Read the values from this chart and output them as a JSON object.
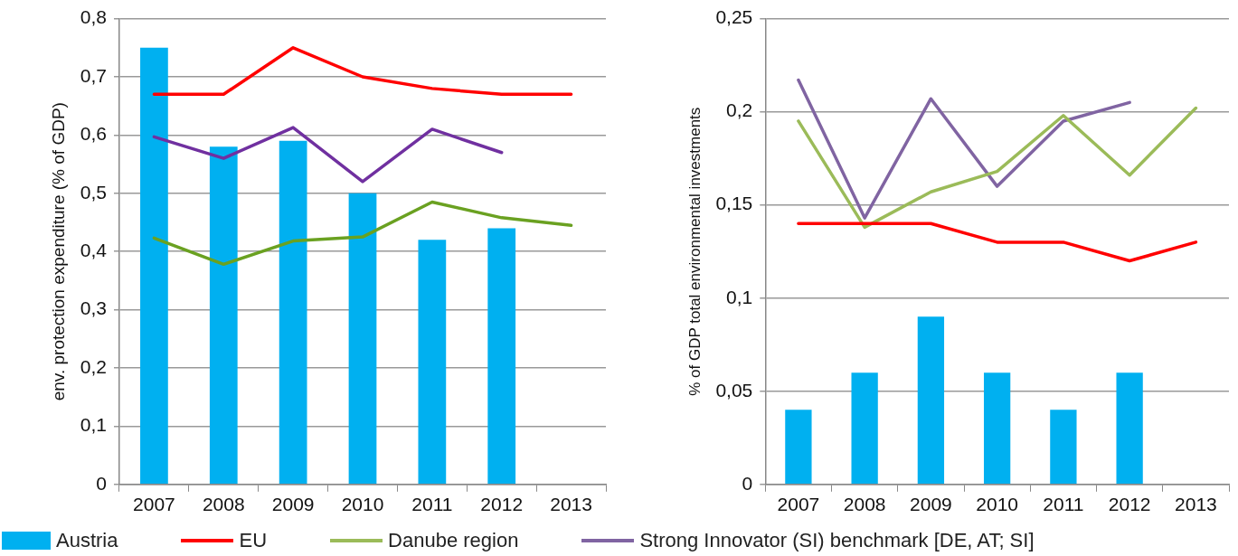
{
  "chart_data": [
    {
      "type": "bar",
      "ylabel": "env. protection expenditure (% of GDP)",
      "categories": [
        "2007",
        "2008",
        "2009",
        "2010",
        "2011",
        "2012",
        "2013"
      ],
      "series": [
        {
          "type": "bar",
          "color": "#00b0f0",
          "values": [
            0.75,
            0.58,
            0.59,
            0.5,
            0.42,
            0.44,
            null
          ]
        },
        {
          "type": "line",
          "color": "#ff0000",
          "values": [
            0.67,
            0.67,
            0.75,
            0.7,
            0.68,
            0.67,
            0.67
          ]
        },
        {
          "type": "line",
          "color": "#6aa121",
          "values": [
            0.423,
            0.378,
            0.418,
            0.425,
            0.485,
            0.458,
            0.445
          ]
        },
        {
          "type": "line",
          "color": "#7030a0",
          "values": [
            0.597,
            0.56,
            0.613,
            0.52,
            0.61,
            0.57,
            null
          ]
        }
      ],
      "ylim": [
        0,
        0.8
      ],
      "yticks": [
        0,
        {
          "value": 0.1,
          "label": "0,1"
        },
        {
          "value": 0.2,
          "label": "0,2"
        },
        {
          "value": 0.3,
          "label": "0,3"
        },
        {
          "value": 0.4,
          "label": "0,4"
        },
        {
          "value": 0.5,
          "label": "0,5"
        },
        {
          "value": 0.6,
          "label": "0,6"
        },
        {
          "value": 0.7,
          "label": "0,7"
        },
        {
          "value": 0.8,
          "label": "0,8"
        }
      ],
      "grid": "y",
      "marker": "none"
    },
    {
      "type": "bar",
      "ylabel": "% of GDP total environmental investments",
      "categories": [
        "2007",
        "2008",
        "2009",
        "2010",
        "2011",
        "2012",
        "2013"
      ],
      "series": [
        {
          "name": "Austria",
          "type": "bar",
          "color": "#00b0f0",
          "values": [
            0.04,
            0.06,
            0.09,
            0.06,
            0.04,
            0.06,
            null
          ]
        },
        {
          "name": "EU",
          "type": "line",
          "color": "#ff0000",
          "values": [
            0.14,
            0.14,
            0.14,
            0.13,
            0.13,
            0.12,
            0.13
          ]
        },
        {
          "name": "Danube region",
          "type": "line",
          "color": "#9bbb59",
          "values": [
            0.195,
            0.138,
            0.157,
            0.168,
            0.198,
            0.166,
            0.202
          ]
        },
        {
          "name": "Strong Innovator (SI) benchmark [DE, AT; SI]",
          "type": "line",
          "color": "#8064a2",
          "values": [
            0.217,
            0.143,
            0.207,
            0.16,
            0.195,
            0.205,
            null
          ]
        }
      ],
      "ylim": [
        0,
        0.25
      ],
      "yticks": [
        0,
        {
          "value": 0.05,
          "label": "0,05"
        },
        {
          "value": 0.1,
          "label": "0,1"
        },
        {
          "value": 0.15,
          "label": "0,15"
        },
        {
          "value": 0.2,
          "label": "0,2"
        },
        {
          "value": 0.25,
          "label": "0,25"
        }
      ],
      "grid": "y",
      "legend": "bottom",
      "marker": "none"
    }
  ]
}
